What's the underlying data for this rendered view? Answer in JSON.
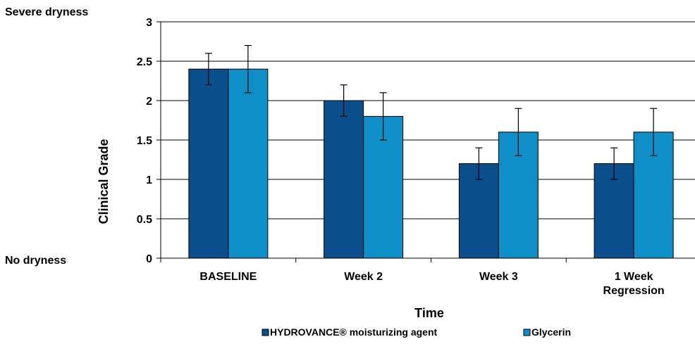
{
  "chart_data": {
    "type": "bar",
    "title": "",
    "xlabel": "Time",
    "ylabel": "Clinical Grade",
    "ylim": [
      0,
      3
    ],
    "yticks": [
      "0",
      "0.5",
      "1",
      "1.5",
      "2",
      "2.5",
      "3"
    ],
    "grid": true,
    "legend_position": "bottom",
    "annotations": {
      "top": "Severe dryness",
      "bottom": "No dryness"
    },
    "categories": [
      [
        "BASELINE"
      ],
      [
        "Week 2"
      ],
      [
        "Week 3"
      ],
      [
        "1 Week",
        "Regression"
      ]
    ],
    "series": [
      {
        "name": "HYDROVANCE® moisturizing agent",
        "color": "#0a4f8c",
        "values": [
          2.4,
          2.0,
          1.2,
          1.2
        ],
        "errors": [
          0.2,
          0.2,
          0.2,
          0.2
        ]
      },
      {
        "name": "Glycerin",
        "color": "#0f8fc8",
        "values": [
          2.4,
          1.8,
          1.6,
          1.6
        ],
        "errors": [
          0.3,
          0.3,
          0.3,
          0.3
        ]
      }
    ]
  }
}
